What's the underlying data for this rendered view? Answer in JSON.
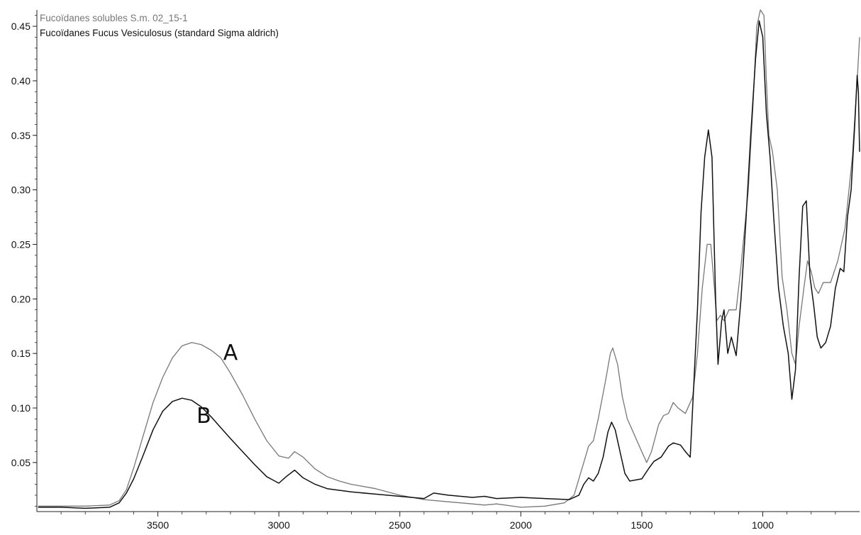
{
  "chart_data": {
    "type": "line",
    "title": "",
    "xlabel": "",
    "ylabel": "",
    "xlim": [
      4000,
      600
    ],
    "ylim": [
      0.005,
      0.465
    ],
    "x_reversed": true,
    "grid": false,
    "legend_position": "top-left",
    "x_ticks": [
      3500,
      3000,
      2500,
      2000,
      1500,
      1000
    ],
    "y_ticks": [
      0.05,
      0.1,
      0.15,
      0.2,
      0.25,
      0.3,
      0.35,
      0.4,
      0.45
    ],
    "x_tick_labels": [
      "3500",
      "3000",
      "2500",
      "2000",
      "1500",
      "1000"
    ],
    "y_tick_labels": [
      "0.05",
      "0.10",
      "0.15",
      "0.20",
      "0.25",
      "0.30",
      "0.35",
      "0.40",
      "0.45"
    ],
    "legend": [
      "Fucoïdanes solubles S.m. 02_15-1",
      "Fucoïdanes Fucus Vesiculosus (standard Sigma aldrich)"
    ],
    "annotations": [
      {
        "text": "A",
        "x": 3230,
        "y": 0.152
      },
      {
        "text": "B",
        "x": 3340,
        "y": 0.094
      }
    ],
    "series": [
      {
        "name": "Fucoïdanes solubles S.m. 02_15-1",
        "color": "#777777",
        "points": [
          [
            3995,
            0.01
          ],
          [
            3900,
            0.01
          ],
          [
            3800,
            0.01
          ],
          [
            3700,
            0.011
          ],
          [
            3660,
            0.015
          ],
          [
            3630,
            0.025
          ],
          [
            3600,
            0.045
          ],
          [
            3560,
            0.075
          ],
          [
            3520,
            0.105
          ],
          [
            3480,
            0.128
          ],
          [
            3440,
            0.146
          ],
          [
            3400,
            0.157
          ],
          [
            3360,
            0.16
          ],
          [
            3320,
            0.158
          ],
          [
            3280,
            0.153
          ],
          [
            3240,
            0.146
          ],
          [
            3200,
            0.132
          ],
          [
            3150,
            0.112
          ],
          [
            3100,
            0.09
          ],
          [
            3050,
            0.07
          ],
          [
            3000,
            0.056
          ],
          [
            2960,
            0.054
          ],
          [
            2935,
            0.06
          ],
          [
            2900,
            0.055
          ],
          [
            2850,
            0.044
          ],
          [
            2800,
            0.037
          ],
          [
            2750,
            0.033
          ],
          [
            2700,
            0.03
          ],
          [
            2600,
            0.026
          ],
          [
            2500,
            0.02
          ],
          [
            2400,
            0.016
          ],
          [
            2300,
            0.014
          ],
          [
            2200,
            0.012
          ],
          [
            2150,
            0.011
          ],
          [
            2100,
            0.012
          ],
          [
            2000,
            0.009
          ],
          [
            1900,
            0.01
          ],
          [
            1820,
            0.013
          ],
          [
            1780,
            0.02
          ],
          [
            1740,
            0.05
          ],
          [
            1720,
            0.065
          ],
          [
            1700,
            0.07
          ],
          [
            1680,
            0.09
          ],
          [
            1650,
            0.125
          ],
          [
            1630,
            0.15
          ],
          [
            1620,
            0.155
          ],
          [
            1600,
            0.14
          ],
          [
            1580,
            0.11
          ],
          [
            1560,
            0.09
          ],
          [
            1540,
            0.08
          ],
          [
            1500,
            0.06
          ],
          [
            1480,
            0.05
          ],
          [
            1460,
            0.06
          ],
          [
            1430,
            0.085
          ],
          [
            1410,
            0.093
          ],
          [
            1390,
            0.095
          ],
          [
            1370,
            0.105
          ],
          [
            1350,
            0.1
          ],
          [
            1320,
            0.095
          ],
          [
            1290,
            0.11
          ],
          [
            1270,
            0.15
          ],
          [
            1250,
            0.21
          ],
          [
            1230,
            0.25
          ],
          [
            1215,
            0.25
          ],
          [
            1200,
            0.21
          ],
          [
            1190,
            0.18
          ],
          [
            1175,
            0.185
          ],
          [
            1160,
            0.18
          ],
          [
            1140,
            0.19
          ],
          [
            1110,
            0.19
          ],
          [
            1090,
            0.23
          ],
          [
            1060,
            0.3
          ],
          [
            1040,
            0.38
          ],
          [
            1025,
            0.45
          ],
          [
            1010,
            0.465
          ],
          [
            995,
            0.46
          ],
          [
            985,
            0.4
          ],
          [
            975,
            0.35
          ],
          [
            960,
            0.335
          ],
          [
            940,
            0.3
          ],
          [
            920,
            0.22
          ],
          [
            900,
            0.19
          ],
          [
            880,
            0.15
          ],
          [
            865,
            0.14
          ],
          [
            850,
            0.175
          ],
          [
            830,
            0.21
          ],
          [
            815,
            0.235
          ],
          [
            800,
            0.225
          ],
          [
            785,
            0.21
          ],
          [
            770,
            0.205
          ],
          [
            750,
            0.215
          ],
          [
            720,
            0.215
          ],
          [
            690,
            0.235
          ],
          [
            660,
            0.265
          ],
          [
            630,
            0.33
          ],
          [
            610,
            0.4
          ],
          [
            600,
            0.44
          ]
        ]
      },
      {
        "name": "Fucoïdanes Fucus Vesiculosus (standard Sigma aldrich)",
        "color": "#111111",
        "points": [
          [
            3995,
            0.009
          ],
          [
            3900,
            0.009
          ],
          [
            3800,
            0.008
          ],
          [
            3700,
            0.009
          ],
          [
            3660,
            0.013
          ],
          [
            3630,
            0.022
          ],
          [
            3600,
            0.035
          ],
          [
            3560,
            0.057
          ],
          [
            3520,
            0.08
          ],
          [
            3480,
            0.097
          ],
          [
            3440,
            0.106
          ],
          [
            3400,
            0.109
          ],
          [
            3360,
            0.107
          ],
          [
            3320,
            0.101
          ],
          [
            3280,
            0.092
          ],
          [
            3240,
            0.082
          ],
          [
            3200,
            0.072
          ],
          [
            3150,
            0.06
          ],
          [
            3100,
            0.048
          ],
          [
            3050,
            0.037
          ],
          [
            3000,
            0.031
          ],
          [
            2970,
            0.037
          ],
          [
            2935,
            0.043
          ],
          [
            2900,
            0.036
          ],
          [
            2850,
            0.03
          ],
          [
            2800,
            0.026
          ],
          [
            2700,
            0.023
          ],
          [
            2600,
            0.021
          ],
          [
            2500,
            0.019
          ],
          [
            2400,
            0.017
          ],
          [
            2360,
            0.022
          ],
          [
            2300,
            0.02
          ],
          [
            2200,
            0.018
          ],
          [
            2150,
            0.019
          ],
          [
            2100,
            0.017
          ],
          [
            2000,
            0.018
          ],
          [
            1900,
            0.017
          ],
          [
            1800,
            0.016
          ],
          [
            1760,
            0.02
          ],
          [
            1740,
            0.03
          ],
          [
            1720,
            0.036
          ],
          [
            1700,
            0.033
          ],
          [
            1680,
            0.04
          ],
          [
            1660,
            0.055
          ],
          [
            1640,
            0.078
          ],
          [
            1625,
            0.087
          ],
          [
            1610,
            0.08
          ],
          [
            1590,
            0.06
          ],
          [
            1570,
            0.04
          ],
          [
            1550,
            0.033
          ],
          [
            1500,
            0.035
          ],
          [
            1470,
            0.045
          ],
          [
            1450,
            0.051
          ],
          [
            1420,
            0.055
          ],
          [
            1390,
            0.065
          ],
          [
            1370,
            0.068
          ],
          [
            1340,
            0.066
          ],
          [
            1320,
            0.06
          ],
          [
            1300,
            0.055
          ],
          [
            1290,
            0.1
          ],
          [
            1270,
            0.19
          ],
          [
            1255,
            0.28
          ],
          [
            1240,
            0.33
          ],
          [
            1225,
            0.355
          ],
          [
            1210,
            0.33
          ],
          [
            1195,
            0.2
          ],
          [
            1185,
            0.14
          ],
          [
            1170,
            0.18
          ],
          [
            1160,
            0.19
          ],
          [
            1145,
            0.15
          ],
          [
            1130,
            0.165
          ],
          [
            1110,
            0.148
          ],
          [
            1090,
            0.2
          ],
          [
            1070,
            0.27
          ],
          [
            1050,
            0.35
          ],
          [
            1030,
            0.42
          ],
          [
            1015,
            0.455
          ],
          [
            1000,
            0.44
          ],
          [
            985,
            0.37
          ],
          [
            970,
            0.33
          ],
          [
            955,
            0.275
          ],
          [
            935,
            0.21
          ],
          [
            915,
            0.175
          ],
          [
            895,
            0.15
          ],
          [
            880,
            0.108
          ],
          [
            865,
            0.135
          ],
          [
            850,
            0.22
          ],
          [
            835,
            0.285
          ],
          [
            820,
            0.29
          ],
          [
            805,
            0.22
          ],
          [
            790,
            0.195
          ],
          [
            775,
            0.165
          ],
          [
            760,
            0.155
          ],
          [
            740,
            0.16
          ],
          [
            720,
            0.175
          ],
          [
            700,
            0.21
          ],
          [
            680,
            0.228
          ],
          [
            665,
            0.225
          ],
          [
            650,
            0.275
          ],
          [
            635,
            0.3
          ],
          [
            620,
            0.36
          ],
          [
            610,
            0.405
          ],
          [
            605,
            0.39
          ],
          [
            600,
            0.335
          ]
        ]
      }
    ]
  }
}
